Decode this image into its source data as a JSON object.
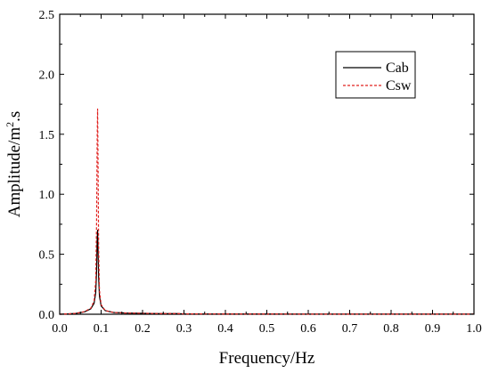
{
  "chart_data": {
    "type": "line",
    "title": "",
    "xlabel": "Frequency/Hz",
    "ylabel_main": "Amplitude/m",
    "ylabel_sup": "2",
    "ylabel_tail": ".s",
    "xlim": [
      0.0,
      1.0
    ],
    "ylim": [
      0.0,
      2.5
    ],
    "xticks": [
      "0.0",
      "0.1",
      "0.2",
      "0.3",
      "0.4",
      "0.5",
      "0.6",
      "0.7",
      "0.8",
      "0.9",
      "1.0"
    ],
    "yticks": [
      "0.0",
      "0.5",
      "1.0",
      "1.5",
      "2.0",
      "2.5"
    ],
    "grid": false,
    "legend": "top-right",
    "series": [
      {
        "name": "Cab",
        "color": "#000000",
        "dash": "solid",
        "x": [
          0.0,
          0.02,
          0.04,
          0.06,
          0.075,
          0.083,
          0.087,
          0.089,
          0.0905,
          0.0915,
          0.0925,
          0.094,
          0.096,
          0.1,
          0.11,
          0.13,
          0.16,
          0.2,
          0.25,
          0.28,
          0.3,
          0.4,
          0.5,
          0.6,
          0.7,
          0.8,
          0.9,
          1.0
        ],
        "y": [
          0.0,
          0.003,
          0.008,
          0.02,
          0.045,
          0.09,
          0.18,
          0.35,
          0.62,
          0.7,
          0.55,
          0.3,
          0.15,
          0.07,
          0.03,
          0.015,
          0.01,
          0.008,
          0.005,
          0.006,
          0.003,
          0.002,
          0.002,
          0.001,
          0.001,
          0.001,
          0.001,
          0.001
        ]
      },
      {
        "name": "Csw",
        "color": "#e0201e",
        "dash": "dashed",
        "x": [
          0.0,
          0.02,
          0.04,
          0.06,
          0.075,
          0.083,
          0.087,
          0.089,
          0.0905,
          0.0915,
          0.0925,
          0.094,
          0.096,
          0.1,
          0.11,
          0.13,
          0.16,
          0.2,
          0.25,
          0.28,
          0.3,
          0.4,
          0.5,
          0.6,
          0.7,
          0.8,
          0.9,
          1.0
        ],
        "y": [
          0.0,
          0.003,
          0.008,
          0.022,
          0.05,
          0.11,
          0.28,
          0.75,
          1.45,
          1.71,
          1.3,
          0.55,
          0.2,
          0.08,
          0.03,
          0.015,
          0.01,
          0.008,
          0.005,
          0.006,
          0.003,
          0.002,
          0.002,
          0.001,
          0.001,
          0.001,
          0.001,
          0.001
        ]
      }
    ]
  }
}
